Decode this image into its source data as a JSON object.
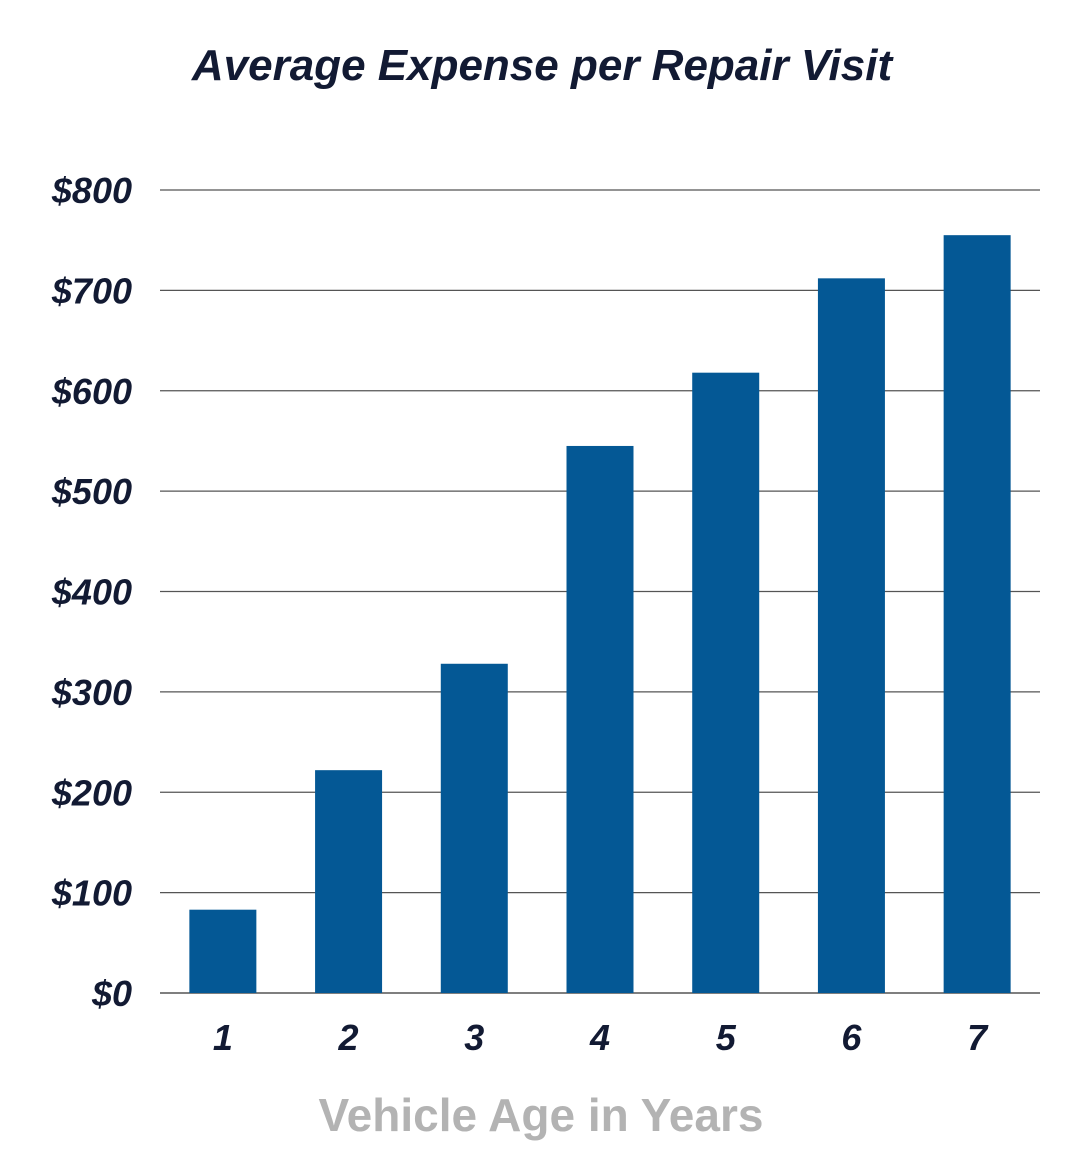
{
  "colors": {
    "bar": "#045895",
    "title": "#121a33",
    "tick": "#121a33",
    "xlabel": "#b3b3b3",
    "grid": "#555555"
  },
  "chart_data": {
    "type": "bar",
    "title": "Average Expense per Repair Visit",
    "xlabel": "Vehicle Age in Years",
    "ylabel": "",
    "categories": [
      "1",
      "2",
      "3",
      "4",
      "5",
      "6",
      "7"
    ],
    "values": [
      83,
      222,
      328,
      545,
      618,
      712,
      755
    ],
    "ylim": [
      0,
      800
    ],
    "yticks": [
      0,
      100,
      200,
      300,
      400,
      500,
      600,
      700,
      800
    ],
    "ytick_labels": [
      "$0",
      "$100",
      "$200",
      "$300",
      "$400",
      "$500",
      "$600",
      "$700",
      "$800"
    ],
    "grid": true,
    "legend": "none"
  }
}
